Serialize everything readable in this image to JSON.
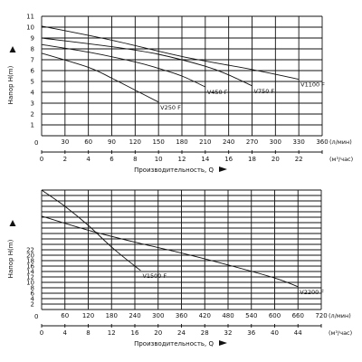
{
  "chart_data": [
    {
      "type": "line",
      "ylabel": "Напор H(m)",
      "xlabel": "Производительность, Q",
      "y_ticks": [
        "1",
        "2",
        "3",
        "4",
        "5",
        "6",
        "7",
        "8",
        "9",
        "10",
        "11"
      ],
      "ylim": [
        0,
        11
      ],
      "x_lpm_ticks": [
        "30",
        "60",
        "90",
        "120",
        "150",
        "180",
        "210",
        "240",
        "270",
        "300",
        "330",
        "360"
      ],
      "x_lpm_unit": "(л/мин)",
      "x_m3h_ticks": [
        "0",
        "2",
        "4",
        "6",
        "8",
        "10",
        "12",
        "14",
        "16",
        "18",
        "20",
        "22"
      ],
      "x_m3h_unit": "(м³/час)",
      "series": [
        {
          "name": "V250 F",
          "x": [
            0,
            60,
            90,
            120,
            150
          ],
          "y": [
            7.6,
            6.3,
            5.3,
            4.2,
            3.1
          ]
        },
        {
          "name": "V450 F",
          "x": [
            0,
            60,
            120,
            150,
            180,
            210
          ],
          "y": [
            8.4,
            7.7,
            6.8,
            6.2,
            5.5,
            4.5
          ]
        },
        {
          "name": "V750 F",
          "x": [
            0,
            90,
            150,
            210,
            240,
            270
          ],
          "y": [
            9.0,
            8.2,
            7.5,
            6.4,
            5.6,
            4.6
          ]
        },
        {
          "name": "V1100 F",
          "x": [
            0,
            90,
            180,
            270,
            330
          ],
          "y": [
            10.1,
            8.8,
            7.3,
            6.1,
            5.2
          ]
        }
      ]
    },
    {
      "type": "line",
      "ylabel": "Напор H(m)",
      "xlabel": "Производительность, Q",
      "y_ticks": [
        "2",
        "4",
        "6",
        "8",
        "10",
        "12",
        "14",
        "16",
        "18",
        "20",
        "22"
      ],
      "ylim": [
        0,
        22
      ],
      "x_lpm_ticks": [
        "60",
        "120",
        "180",
        "240",
        "300",
        "360",
        "420",
        "480",
        "540",
        "600",
        "660",
        "720"
      ],
      "x_lpm_unit": "(л/мин)",
      "x_m3h_ticks": [
        "0",
        "4",
        "8",
        "12",
        "16",
        "20",
        "24",
        "28",
        "32",
        "36",
        "40",
        "44"
      ],
      "x_m3h_unit": "(м³/час)",
      "series": [
        {
          "name": "V1500 F",
          "x": [
            0,
            60,
            120,
            180,
            240,
            255
          ],
          "y": [
            22,
            19,
            15.5,
            11.5,
            8.0,
            7.2
          ]
        },
        {
          "name": "V2200 F",
          "x": [
            0,
            120,
            240,
            360,
            480,
            600,
            660
          ],
          "y": [
            17.2,
            14.6,
            12.4,
            10.4,
            8.2,
            5.8,
            4.2
          ]
        }
      ]
    }
  ]
}
